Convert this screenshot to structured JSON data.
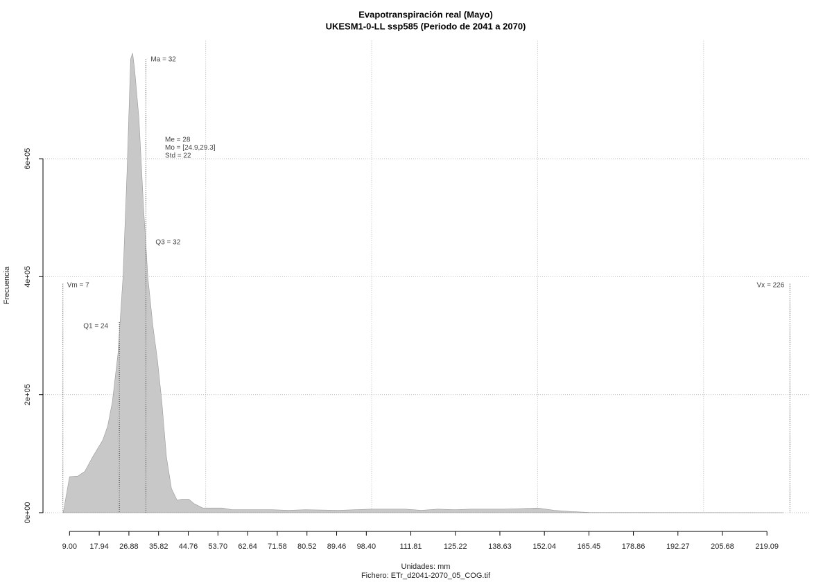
{
  "chart_data": {
    "type": "area",
    "title": "Evapotranspiración real (Mayo)",
    "subtitle": "UKESM1-0-LL ssp585 (Periodo de 2041 a 2070)",
    "xlabel": "Unidades: mm",
    "caption": "Fichero: ETr_d2041-2070_05_COG.tif",
    "ylabel": "Frecuencia",
    "color": "#c8c8c8",
    "x": [
      7.1,
      9,
      11.5,
      13.6,
      15.9,
      19.0,
      20.5,
      21.9,
      23.6,
      25.1,
      26.3,
      27.4,
      28.0,
      28.6,
      29.9,
      31.3,
      32.6,
      34.1,
      35.5,
      36.8,
      38.2,
      39.7,
      41.4,
      42.8,
      44.9,
      46.6,
      49.1,
      55,
      58,
      70,
      75,
      80,
      90,
      95,
      100,
      110,
      115,
      120,
      125,
      130,
      135,
      140,
      145,
      150,
      155,
      160,
      165.6,
      180,
      200,
      224
    ],
    "values": [
      0,
      61000,
      62000,
      70000,
      94000,
      123000,
      147000,
      188000,
      270000,
      399000,
      575000,
      769000,
      779000,
      752000,
      669000,
      517000,
      399000,
      317000,
      258000,
      188000,
      94000,
      41000,
      21000,
      23000,
      23000,
      15000,
      8000,
      8000,
      5000,
      5000,
      4000,
      5000,
      4000,
      5000,
      6000,
      6000,
      4000,
      6000,
      5000,
      6000,
      6000,
      6000,
      7000,
      8000,
      4000,
      2000,
      500,
      300,
      200,
      0
    ],
    "xlim": [
      1,
      232
    ],
    "ylim": [
      -20000,
      800000
    ],
    "xticks": [
      {
        "value": 9,
        "label": "9.00"
      },
      17.94,
      26.88,
      35.82,
      44.76,
      {
        "value": 53.7,
        "label": "53.70"
      },
      62.64,
      71.58,
      80.52,
      89.46,
      {
        "value": 98.4,
        "label": "98.40"
      },
      111.81,
      125.22,
      138.63,
      152.04,
      165.45,
      178.86,
      192.27,
      205.68,
      219.09
    ],
    "xgrid": [
      50,
      100,
      150,
      200
    ],
    "yticks": [
      {
        "value": 0,
        "label": "0e+00"
      },
      {
        "value": 200000,
        "label": "2e+05"
      },
      {
        "value": 400000,
        "label": "4e+05"
      },
      {
        "value": 600000,
        "label": "6e+05"
      }
    ],
    "grid": true,
    "markers": [
      {
        "label": "Vm = 7",
        "value": 7
      },
      {
        "label": "Q1 = 24",
        "value": 24
      },
      {
        "label": "Ma = 32",
        "value": 32
      },
      {
        "label": "Q3 = 32",
        "value": 32
      },
      {
        "label": "Vx = 226",
        "value": 226
      }
    ],
    "stats": [
      "Me = 28",
      "Mo = [24.9,29.3]",
      "Std = 22"
    ]
  }
}
